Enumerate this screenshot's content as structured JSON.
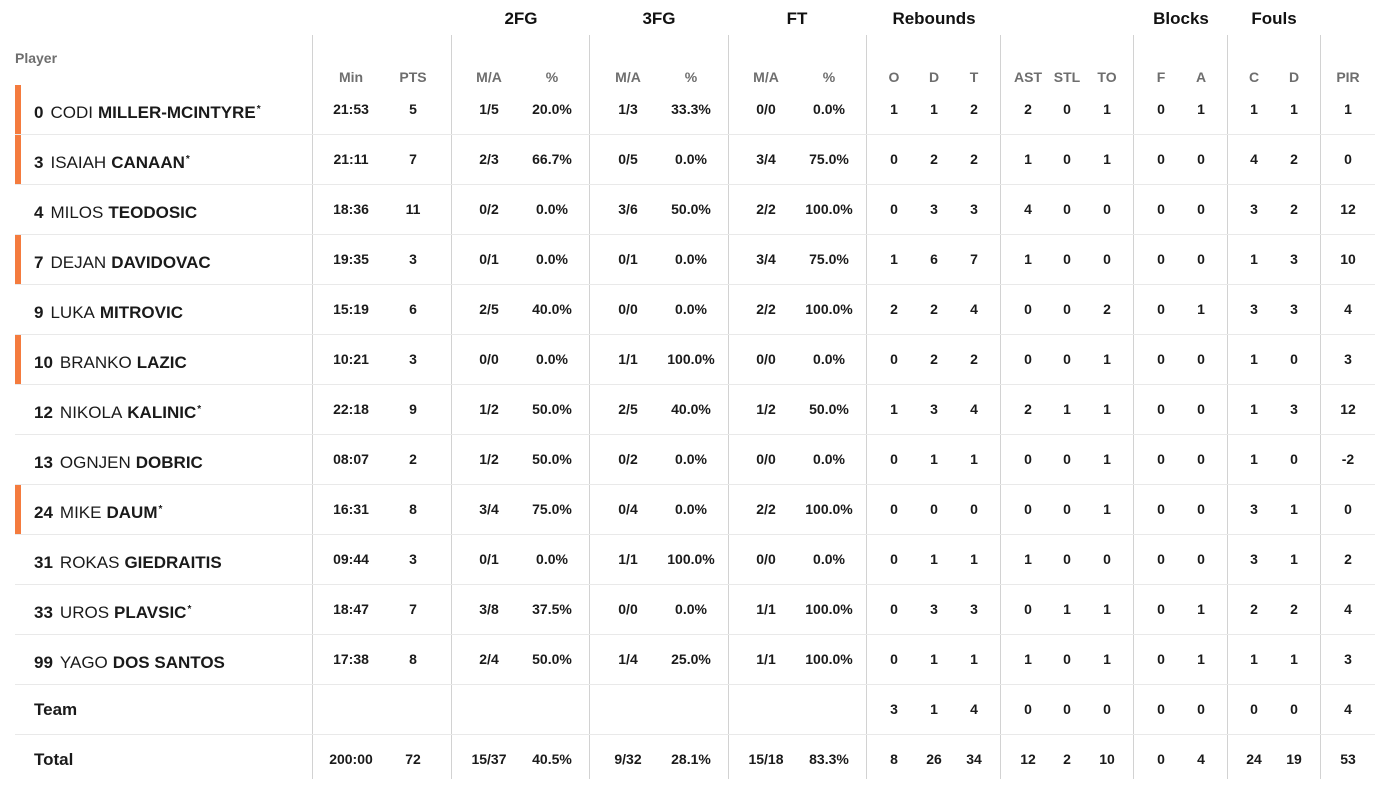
{
  "headers": {
    "player": "Player",
    "groups": [
      "2FG",
      "3FG",
      "FT",
      "Rebounds",
      "Blocks",
      "Fouls"
    ],
    "subs": [
      "Min",
      "PTS",
      "M/A",
      "%",
      "M/A",
      "%",
      "M/A",
      "%",
      "O",
      "D",
      "T",
      "AST",
      "STL",
      "TO",
      "F",
      "A",
      "C",
      "D",
      "PIR"
    ]
  },
  "players": [
    {
      "num": "0",
      "first": "CODI",
      "last": "MILLER-MCINTYRE",
      "star": "*",
      "starter": true,
      "stats": [
        "21:53",
        "5",
        "1/5",
        "20.0%",
        "1/3",
        "33.3%",
        "0/0",
        "0.0%",
        "1",
        "1",
        "2",
        "2",
        "0",
        "1",
        "0",
        "1",
        "1",
        "1",
        "1"
      ]
    },
    {
      "num": "3",
      "first": "ISAIAH",
      "last": "CANAAN",
      "star": "*",
      "starter": true,
      "stats": [
        "21:11",
        "7",
        "2/3",
        "66.7%",
        "0/5",
        "0.0%",
        "3/4",
        "75.0%",
        "0",
        "2",
        "2",
        "1",
        "0",
        "1",
        "0",
        "0",
        "4",
        "2",
        "0"
      ]
    },
    {
      "num": "4",
      "first": "MILOS",
      "last": "TEODOSIC",
      "star": "",
      "starter": false,
      "stats": [
        "18:36",
        "11",
        "0/2",
        "0.0%",
        "3/6",
        "50.0%",
        "2/2",
        "100.0%",
        "0",
        "3",
        "3",
        "4",
        "0",
        "0",
        "0",
        "0",
        "3",
        "2",
        "12"
      ]
    },
    {
      "num": "7",
      "first": "DEJAN",
      "last": "DAVIDOVAC",
      "star": "",
      "starter": true,
      "stats": [
        "19:35",
        "3",
        "0/1",
        "0.0%",
        "0/1",
        "0.0%",
        "3/4",
        "75.0%",
        "1",
        "6",
        "7",
        "1",
        "0",
        "0",
        "0",
        "0",
        "1",
        "3",
        "10"
      ]
    },
    {
      "num": "9",
      "first": "LUKA",
      "last": "MITROVIC",
      "star": "",
      "starter": false,
      "stats": [
        "15:19",
        "6",
        "2/5",
        "40.0%",
        "0/0",
        "0.0%",
        "2/2",
        "100.0%",
        "2",
        "2",
        "4",
        "0",
        "0",
        "2",
        "0",
        "1",
        "3",
        "3",
        "4"
      ]
    },
    {
      "num": "10",
      "first": "BRANKO",
      "last": "LAZIC",
      "star": "",
      "starter": true,
      "stats": [
        "10:21",
        "3",
        "0/0",
        "0.0%",
        "1/1",
        "100.0%",
        "0/0",
        "0.0%",
        "0",
        "2",
        "2",
        "0",
        "0",
        "1",
        "0",
        "0",
        "1",
        "0",
        "3"
      ]
    },
    {
      "num": "12",
      "first": "NIKOLA",
      "last": "KALINIC",
      "star": "*",
      "starter": false,
      "stats": [
        "22:18",
        "9",
        "1/2",
        "50.0%",
        "2/5",
        "40.0%",
        "1/2",
        "50.0%",
        "1",
        "3",
        "4",
        "2",
        "1",
        "1",
        "0",
        "0",
        "1",
        "3",
        "12"
      ]
    },
    {
      "num": "13",
      "first": "OGNJEN",
      "last": "DOBRIC",
      "star": "",
      "starter": false,
      "stats": [
        "08:07",
        "2",
        "1/2",
        "50.0%",
        "0/2",
        "0.0%",
        "0/0",
        "0.0%",
        "0",
        "1",
        "1",
        "0",
        "0",
        "1",
        "0",
        "0",
        "1",
        "0",
        "-2"
      ]
    },
    {
      "num": "24",
      "first": "MIKE",
      "last": "DAUM",
      "star": "*",
      "starter": true,
      "stats": [
        "16:31",
        "8",
        "3/4",
        "75.0%",
        "0/4",
        "0.0%",
        "2/2",
        "100.0%",
        "0",
        "0",
        "0",
        "0",
        "0",
        "1",
        "0",
        "0",
        "3",
        "1",
        "0"
      ]
    },
    {
      "num": "31",
      "first": "ROKAS",
      "last": "GIEDRAITIS",
      "star": "",
      "starter": false,
      "stats": [
        "09:44",
        "3",
        "0/1",
        "0.0%",
        "1/1",
        "100.0%",
        "0/0",
        "0.0%",
        "0",
        "1",
        "1",
        "1",
        "0",
        "0",
        "0",
        "0",
        "3",
        "1",
        "2"
      ]
    },
    {
      "num": "33",
      "first": "UROS",
      "last": "PLAVSIC",
      "star": "*",
      "starter": false,
      "stats": [
        "18:47",
        "7",
        "3/8",
        "37.5%",
        "0/0",
        "0.0%",
        "1/1",
        "100.0%",
        "0",
        "3",
        "3",
        "0",
        "1",
        "1",
        "0",
        "1",
        "2",
        "2",
        "4"
      ]
    },
    {
      "num": "99",
      "first": "YAGO",
      "last": "DOS SANTOS",
      "star": "",
      "starter": false,
      "stats": [
        "17:38",
        "8",
        "2/4",
        "50.0%",
        "1/4",
        "25.0%",
        "1/1",
        "100.0%",
        "0",
        "1",
        "1",
        "1",
        "0",
        "1",
        "0",
        "1",
        "1",
        "1",
        "3"
      ]
    }
  ],
  "team": {
    "label": "Team",
    "stats": [
      "",
      "",
      "",
      "",
      "",
      "",
      "",
      "",
      "3",
      "1",
      "4",
      "0",
      "0",
      "0",
      "0",
      "0",
      "0",
      "0",
      "4"
    ]
  },
  "total": {
    "label": "Total",
    "stats": [
      "200:00",
      "72",
      "15/37",
      "40.5%",
      "9/32",
      "28.1%",
      "15/18",
      "83.3%",
      "8",
      "26",
      "34",
      "12",
      "2",
      "10",
      "0",
      "4",
      "24",
      "19",
      "53"
    ]
  },
  "colors": {
    "starter_accent": "#f47b3e",
    "divider": "#d2d2d2",
    "subheader_text": "#6e6e6e"
  }
}
